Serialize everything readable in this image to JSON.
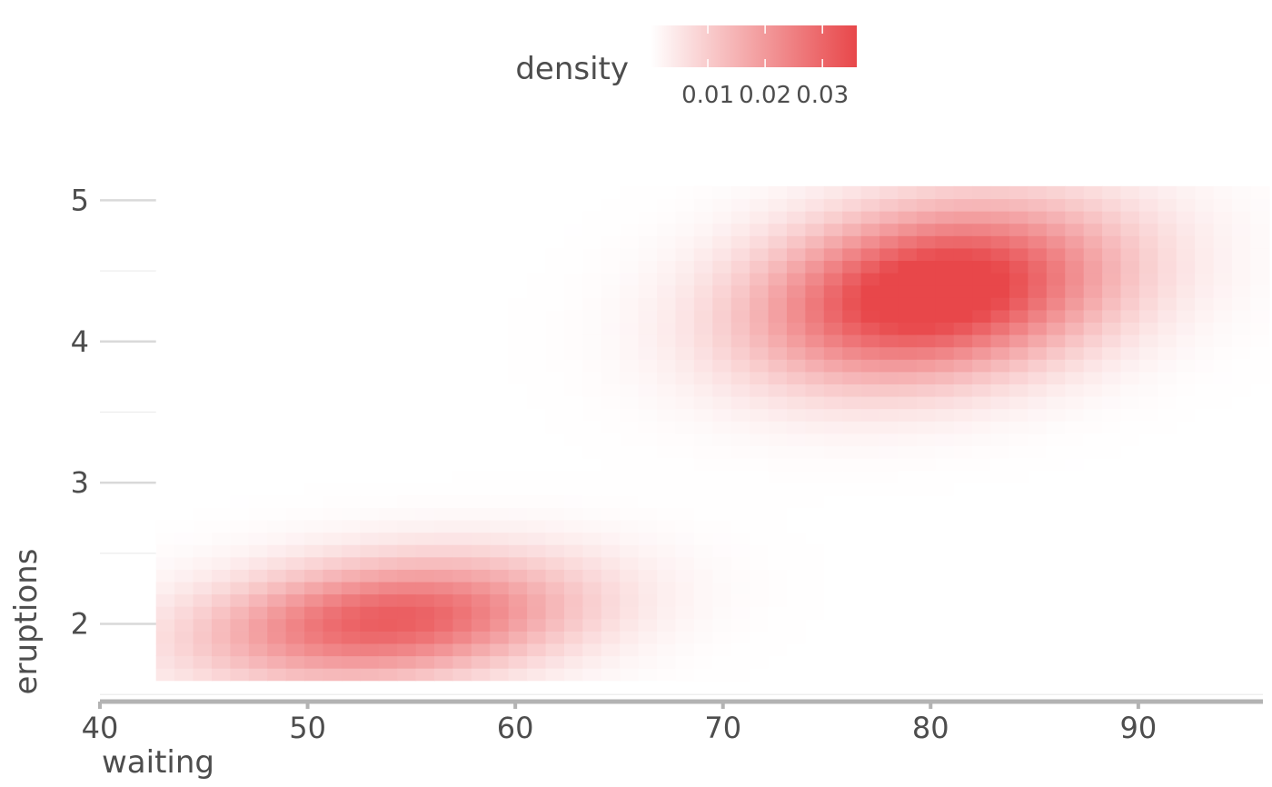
{
  "chart_data": {
    "type": "heatmap",
    "title": "",
    "xlabel": "waiting",
    "ylabel": "eruptions",
    "xlim": [
      40,
      96
    ],
    "ylim": [
      1.45,
      5.35
    ],
    "x_ticks": [
      40,
      50,
      60,
      70,
      80,
      90
    ],
    "y_ticks": [
      2,
      3,
      4,
      5
    ],
    "x_tick_labels": [
      "40",
      "50",
      "60",
      "70",
      "80",
      "90"
    ],
    "y_tick_labels": [
      "2",
      "3",
      "4",
      "5"
    ],
    "grid": true,
    "density_x_range": [
      42.7,
      96.3
    ],
    "density_y_range": [
      1.6,
      5.1
    ],
    "density_grid_size": [
      60,
      40
    ],
    "density_peaks": [
      {
        "x": 80.5,
        "y": 4.4,
        "density": 0.036
      },
      {
        "x": 53.5,
        "y": 1.95,
        "density": 0.026
      }
    ],
    "legend": {
      "title": "density",
      "placement": "top",
      "breaks": [
        0.01,
        0.02,
        0.03
      ],
      "break_labels": [
        "0.01",
        "0.02",
        "0.03"
      ],
      "range": [
        0,
        0.036
      ],
      "color_low": "#ffffff",
      "color_high": "#e8474a"
    },
    "colors": {
      "low": "#ffffff",
      "high": "#e8474a",
      "axis_line": "#b3b3b3",
      "grid": "#d9d9d9",
      "text": "#4d4d4d"
    }
  }
}
